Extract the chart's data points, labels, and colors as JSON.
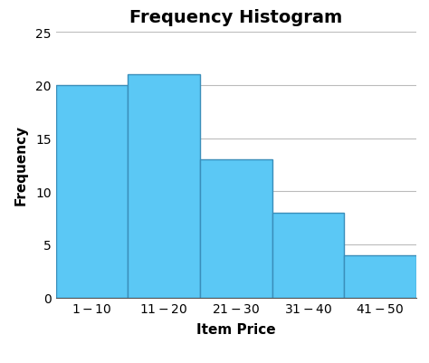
{
  "title": "Frequency Histogram",
  "xlabel": "Item Price",
  "ylabel": "Frequency",
  "categories": [
    "$1 - $10",
    "$11 - $20",
    "$21 - $30",
    "$31 - $40",
    "$41 - $50"
  ],
  "values": [
    20,
    21,
    13,
    8,
    4
  ],
  "bar_color": "#5BC8F5",
  "bar_edge_color": "#3A8EBA",
  "ylim": [
    0,
    25
  ],
  "yticks": [
    0,
    5,
    10,
    15,
    20,
    25
  ],
  "title_fontsize": 14,
  "title_fontweight": "bold",
  "label_fontsize": 11,
  "label_fontweight": "bold",
  "tick_fontsize": 10,
  "background_color": "#ffffff",
  "grid_color": "#bbbbbb",
  "figsize": [
    4.74,
    4.02
  ],
  "dpi": 100
}
